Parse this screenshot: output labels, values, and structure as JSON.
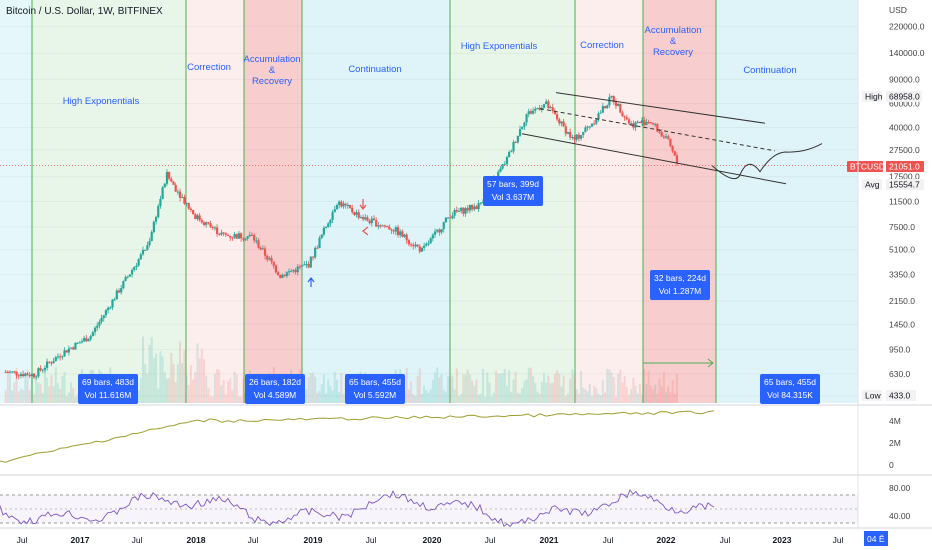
{
  "header": {
    "title": "Bitcoin / U.S. Dollar, 1W, BITFINEX"
  },
  "price_axis": {
    "unit": "USD",
    "ticks": [
      "220000.0",
      "140000.0",
      "90000.0",
      "60000.0",
      "40000.0",
      "27500.0",
      "17500.0",
      "11500.0",
      "7500.0",
      "5100.0",
      "3350.0",
      "2150.0",
      "1450.0",
      "950.0",
      "630.0",
      "433.0"
    ],
    "badges": {
      "high_label": "High",
      "high_value": "68958.0",
      "last_label": "BTCUSD",
      "last_value": "21051.0",
      "avg_label": "Avg",
      "avg_value": "15554.7",
      "low_label": "Low",
      "low_value": "433.0"
    }
  },
  "time_axis": {
    "ticks": [
      "Jul",
      "2017",
      "Jul",
      "2018",
      "Jul",
      "2019",
      "Jul",
      "2020",
      "Jul",
      "2021",
      "Jul",
      "2022",
      "Jul",
      "2023",
      "Jul"
    ],
    "cursor_label": "04 Ĕ"
  },
  "zones": [
    {
      "label": "",
      "color": "#e6f7fb"
    },
    {
      "label": "High Exponentials",
      "color": "#e8f5e9"
    },
    {
      "label": "Correction",
      "color": "#fdeeee"
    },
    {
      "label": "Accumulation\n&\nRecovery",
      "color": "#f8cdcd"
    },
    {
      "label": "Continuation",
      "color": "#dff4f8"
    },
    {
      "label": "High Exponentials",
      "color": "#e8f5e9"
    },
    {
      "label": "Correction",
      "color": "#fdeeee"
    },
    {
      "label": "Accumulation\n&\nRecovery",
      "color": "#f8cdcd"
    },
    {
      "label": "Continuation",
      "color": "#dff4f8"
    }
  ],
  "measure_boxes": [
    {
      "bars": "69 bars, 483d",
      "vol": "Vol 11.616M"
    },
    {
      "bars": "26 bars, 182d",
      "vol": "Vol 4.589M"
    },
    {
      "bars": "65 bars, 455d",
      "vol": "Vol 5.592M"
    },
    {
      "bars": "57 bars, 399d",
      "vol": "Vol 3.637M"
    },
    {
      "bars": "32 bars, 224d",
      "vol": "Vol 1.287M"
    },
    {
      "bars": "65 bars, 455d",
      "vol": "Vol 84.315K"
    }
  ],
  "volume_axis": {
    "ticks": [
      "4M",
      "2M",
      "0"
    ]
  },
  "rsi_axis": {
    "ticks": [
      "80.00",
      "40.00"
    ]
  },
  "colors": {
    "up": "#26a69a",
    "down": "#ef5350",
    "zone_line": "#4caf50",
    "obv": "#9e9e32",
    "rsi": "#7e57c2",
    "box": "#2962ff"
  },
  "chart_data": {
    "type": "candlestick",
    "title": "Bitcoin / U.S. Dollar, 1W, BITFINEX",
    "scale": "log",
    "series": [
      {
        "name": "BTCUSD",
        "x": [
          "2016-07",
          "2016-10",
          "2017-01",
          "2017-04",
          "2017-07",
          "2017-10",
          "2017-12",
          "2018-03",
          "2018-06",
          "2018-09",
          "2018-12",
          "2019-03",
          "2019-06",
          "2019-09",
          "2019-12",
          "2020-03",
          "2020-06",
          "2020-09",
          "2020-12",
          "2021-02",
          "2021-04",
          "2021-07",
          "2021-09",
          "2021-11",
          "2022-01",
          "2022-03",
          "2022-05",
          "2022-06"
        ],
        "values": [
          650,
          620,
          900,
          1200,
          2600,
          5500,
          18000,
          9000,
          6500,
          6400,
          3300,
          4000,
          11500,
          8500,
          7200,
          5000,
          9300,
          10800,
          24000,
          50000,
          60000,
          32000,
          44000,
          67000,
          42000,
          45000,
          31000,
          21051
        ]
      }
    ]
  }
}
